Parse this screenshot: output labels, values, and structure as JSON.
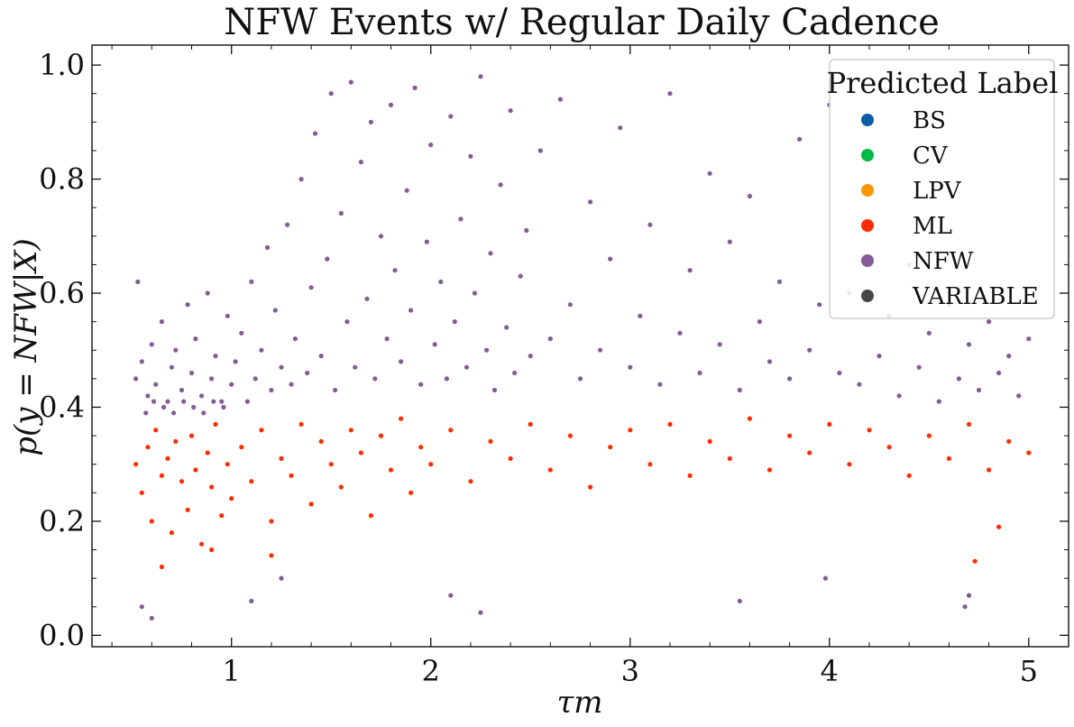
{
  "chart_data": {
    "type": "scatter",
    "title": "NFW Events w/ Regular Daily Cadence",
    "xlabel": "τm",
    "ylabel": "p(y = NFW|X)",
    "xlim": [
      0.3,
      5.2
    ],
    "ylim": [
      -0.02,
      1.035
    ],
    "xticks": [
      1,
      2,
      3,
      4,
      5
    ],
    "xtick_labels": [
      "1",
      "2",
      "3",
      "4",
      "5"
    ],
    "yticks": [
      0.0,
      0.2,
      0.4,
      0.6,
      0.8,
      1.0
    ],
    "ytick_labels": [
      "0.0",
      "0.2",
      "0.4",
      "0.6",
      "0.8",
      "1.0"
    ],
    "grid": false,
    "legend": {
      "title": "Predicted Label",
      "placement": "top-right",
      "entries": [
        {
          "label": "BS",
          "color": "#0C5DA5"
        },
        {
          "label": "CV",
          "color": "#00B945"
        },
        {
          "label": "LPV",
          "color": "#FF9500"
        },
        {
          "label": "ML",
          "color": "#FF2C00"
        },
        {
          "label": "NFW",
          "color": "#845B97"
        },
        {
          "label": "VARIABLE",
          "color": "#474747"
        }
      ]
    },
    "series": [
      {
        "label": "NFW",
        "color": "#845B97",
        "points": [
          [
            0.52,
            0.45
          ],
          [
            0.55,
            0.48
          ],
          [
            0.58,
            0.42
          ],
          [
            0.6,
            0.51
          ],
          [
            0.62,
            0.44
          ],
          [
            0.65,
            0.55
          ],
          [
            0.68,
            0.41
          ],
          [
            0.7,
            0.47
          ],
          [
            0.72,
            0.5
          ],
          [
            0.75,
            0.43
          ],
          [
            0.78,
            0.58
          ],
          [
            0.8,
            0.46
          ],
          [
            0.82,
            0.52
          ],
          [
            0.85,
            0.42
          ],
          [
            0.88,
            0.6
          ],
          [
            0.9,
            0.45
          ],
          [
            0.92,
            0.49
          ],
          [
            0.95,
            0.41
          ],
          [
            0.98,
            0.56
          ],
          [
            1.0,
            0.44
          ],
          [
            0.53,
            0.62
          ],
          [
            0.57,
            0.39
          ],
          [
            0.61,
            0.41
          ],
          [
            0.66,
            0.4
          ],
          [
            0.71,
            0.39
          ],
          [
            0.76,
            0.41
          ],
          [
            0.81,
            0.4
          ],
          [
            0.86,
            0.39
          ],
          [
            0.91,
            0.41
          ],
          [
            0.96,
            0.4
          ],
          [
            1.02,
            0.48
          ],
          [
            1.05,
            0.53
          ],
          [
            1.08,
            0.41
          ],
          [
            1.1,
            0.62
          ],
          [
            1.12,
            0.45
          ],
          [
            1.15,
            0.5
          ],
          [
            1.18,
            0.68
          ],
          [
            1.2,
            0.43
          ],
          [
            1.22,
            0.57
          ],
          [
            1.25,
            0.47
          ],
          [
            1.28,
            0.72
          ],
          [
            1.3,
            0.44
          ],
          [
            1.32,
            0.52
          ],
          [
            1.35,
            0.8
          ],
          [
            1.38,
            0.46
          ],
          [
            1.4,
            0.61
          ],
          [
            1.42,
            0.88
          ],
          [
            1.45,
            0.49
          ],
          [
            1.48,
            0.66
          ],
          [
            1.5,
            0.95
          ],
          [
            1.52,
            0.43
          ],
          [
            1.55,
            0.74
          ],
          [
            1.58,
            0.55
          ],
          [
            1.6,
            0.97
          ],
          [
            1.62,
            0.47
          ],
          [
            1.65,
            0.83
          ],
          [
            1.68,
            0.59
          ],
          [
            1.7,
            0.9
          ],
          [
            1.72,
            0.45
          ],
          [
            1.75,
            0.7
          ],
          [
            1.78,
            0.52
          ],
          [
            1.8,
            0.93
          ],
          [
            1.82,
            0.64
          ],
          [
            1.85,
            0.48
          ],
          [
            1.88,
            0.78
          ],
          [
            1.9,
            0.57
          ],
          [
            1.92,
            0.96
          ],
          [
            1.95,
            0.44
          ],
          [
            1.98,
            0.69
          ],
          [
            2.0,
            0.86
          ],
          [
            2.02,
            0.51
          ],
          [
            2.05,
            0.62
          ],
          [
            2.08,
            0.45
          ],
          [
            2.1,
            0.91
          ],
          [
            2.12,
            0.55
          ],
          [
            2.15,
            0.73
          ],
          [
            2.18,
            0.47
          ],
          [
            2.2,
            0.84
          ],
          [
            2.22,
            0.6
          ],
          [
            2.25,
            0.98
          ],
          [
            2.28,
            0.5
          ],
          [
            2.3,
            0.67
          ],
          [
            2.32,
            0.43
          ],
          [
            2.35,
            0.79
          ],
          [
            2.38,
            0.54
          ],
          [
            2.4,
            0.92
          ],
          [
            2.42,
            0.46
          ],
          [
            2.45,
            0.63
          ],
          [
            2.48,
            0.71
          ],
          [
            2.5,
            0.49
          ],
          [
            2.55,
            0.85
          ],
          [
            2.6,
            0.52
          ],
          [
            2.65,
            0.94
          ],
          [
            2.7,
            0.58
          ],
          [
            2.75,
            0.45
          ],
          [
            2.8,
            0.76
          ],
          [
            2.85,
            0.5
          ],
          [
            2.9,
            0.66
          ],
          [
            2.95,
            0.89
          ],
          [
            3.0,
            0.47
          ],
          [
            3.05,
            0.56
          ],
          [
            3.1,
            0.72
          ],
          [
            3.15,
            0.44
          ],
          [
            3.2,
            0.95
          ],
          [
            3.25,
            0.53
          ],
          [
            3.3,
            0.64
          ],
          [
            3.35,
            0.46
          ],
          [
            3.4,
            0.81
          ],
          [
            3.45,
            0.51
          ],
          [
            3.5,
            0.69
          ],
          [
            3.55,
            0.43
          ],
          [
            3.6,
            0.77
          ],
          [
            3.65,
            0.55
          ],
          [
            3.7,
            0.48
          ],
          [
            3.75,
            0.62
          ],
          [
            3.8,
            0.45
          ],
          [
            3.85,
            0.87
          ],
          [
            3.9,
            0.5
          ],
          [
            3.95,
            0.58
          ],
          [
            4.0,
            0.93
          ],
          [
            4.05,
            0.46
          ],
          [
            4.1,
            0.6
          ],
          [
            4.15,
            0.44
          ],
          [
            4.2,
            0.71
          ],
          [
            4.25,
            0.49
          ],
          [
            4.3,
            0.56
          ],
          [
            4.35,
            0.42
          ],
          [
            4.4,
            0.65
          ],
          [
            4.45,
            0.47
          ],
          [
            4.5,
            0.53
          ],
          [
            4.55,
            0.41
          ],
          [
            4.6,
            0.58
          ],
          [
            4.65,
            0.45
          ],
          [
            4.7,
            0.51
          ],
          [
            4.75,
            0.43
          ],
          [
            4.8,
            0.55
          ],
          [
            4.85,
            0.46
          ],
          [
            4.9,
            0.49
          ],
          [
            4.95,
            0.42
          ],
          [
            5.0,
            0.52
          ],
          [
            0.55,
            0.05
          ],
          [
            0.6,
            0.03
          ],
          [
            1.1,
            0.06
          ],
          [
            2.1,
            0.07
          ],
          [
            2.25,
            0.04
          ],
          [
            3.55,
            0.06
          ],
          [
            3.98,
            0.1
          ],
          [
            4.68,
            0.05
          ],
          [
            4.7,
            0.07
          ],
          [
            1.25,
            0.1
          ]
        ]
      },
      {
        "label": "ML",
        "color": "#FF2C00",
        "points": [
          [
            0.52,
            0.3
          ],
          [
            0.55,
            0.25
          ],
          [
            0.58,
            0.33
          ],
          [
            0.6,
            0.2
          ],
          [
            0.62,
            0.36
          ],
          [
            0.65,
            0.28
          ],
          [
            0.68,
            0.31
          ],
          [
            0.7,
            0.18
          ],
          [
            0.72,
            0.34
          ],
          [
            0.75,
            0.27
          ],
          [
            0.78,
            0.22
          ],
          [
            0.8,
            0.35
          ],
          [
            0.82,
            0.29
          ],
          [
            0.85,
            0.16
          ],
          [
            0.88,
            0.32
          ],
          [
            0.9,
            0.26
          ],
          [
            0.92,
            0.37
          ],
          [
            0.95,
            0.21
          ],
          [
            0.98,
            0.3
          ],
          [
            1.0,
            0.24
          ],
          [
            1.05,
            0.33
          ],
          [
            1.1,
            0.27
          ],
          [
            1.15,
            0.36
          ],
          [
            1.2,
            0.2
          ],
          [
            1.25,
            0.31
          ],
          [
            1.3,
            0.28
          ],
          [
            1.35,
            0.37
          ],
          [
            1.4,
            0.23
          ],
          [
            1.45,
            0.34
          ],
          [
            1.5,
            0.3
          ],
          [
            1.55,
            0.26
          ],
          [
            1.6,
            0.36
          ],
          [
            1.65,
            0.32
          ],
          [
            1.7,
            0.21
          ],
          [
            1.75,
            0.35
          ],
          [
            1.8,
            0.29
          ],
          [
            1.85,
            0.38
          ],
          [
            1.9,
            0.25
          ],
          [
            1.95,
            0.33
          ],
          [
            2.0,
            0.3
          ],
          [
            2.1,
            0.36
          ],
          [
            2.2,
            0.27
          ],
          [
            2.3,
            0.34
          ],
          [
            2.4,
            0.31
          ],
          [
            2.5,
            0.37
          ],
          [
            2.6,
            0.29
          ],
          [
            2.7,
            0.35
          ],
          [
            2.8,
            0.26
          ],
          [
            2.9,
            0.33
          ],
          [
            3.0,
            0.36
          ],
          [
            3.1,
            0.3
          ],
          [
            3.2,
            0.37
          ],
          [
            3.3,
            0.28
          ],
          [
            3.4,
            0.34
          ],
          [
            3.5,
            0.31
          ],
          [
            3.6,
            0.38
          ],
          [
            3.7,
            0.29
          ],
          [
            3.8,
            0.35
          ],
          [
            3.9,
            0.32
          ],
          [
            4.0,
            0.37
          ],
          [
            4.1,
            0.3
          ],
          [
            4.2,
            0.36
          ],
          [
            4.3,
            0.33
          ],
          [
            4.4,
            0.28
          ],
          [
            4.5,
            0.35
          ],
          [
            4.6,
            0.31
          ],
          [
            4.7,
            0.37
          ],
          [
            4.8,
            0.29
          ],
          [
            4.9,
            0.34
          ],
          [
            5.0,
            0.32
          ],
          [
            0.65,
            0.12
          ],
          [
            0.9,
            0.15
          ],
          [
            1.2,
            0.14
          ],
          [
            4.73,
            0.13
          ],
          [
            4.85,
            0.19
          ]
        ]
      }
    ]
  }
}
